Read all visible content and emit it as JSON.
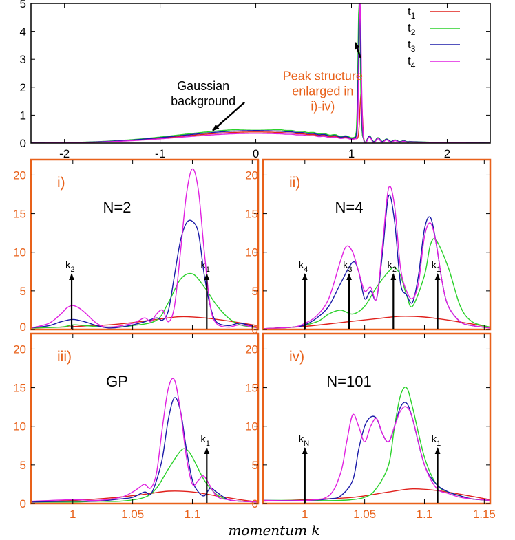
{
  "colors": {
    "t1": "#e0201b",
    "t2": "#2ad12a",
    "t3": "#1a1aa8",
    "t4": "#e020e0",
    "accent": "#e8611a",
    "axis": "#000000"
  },
  "xlabel": "momentum k",
  "chart_data": [
    {
      "type": "line",
      "panel": "top",
      "xlim": [
        -2.35,
        2.45
      ],
      "ylim": [
        0,
        5
      ],
      "xticks": [
        "-2",
        "-1",
        "0",
        "1",
        "2"
      ],
      "xtick_values": [
        -2,
        -1,
        0,
        1,
        2
      ],
      "yticks": [
        "0",
        "1",
        "2",
        "3",
        "4",
        "5"
      ],
      "ytick_values": [
        0,
        1,
        2,
        3,
        4,
        5
      ],
      "legend": {
        "placement": "top-right",
        "entries": [
          {
            "key": "t1",
            "main": "t",
            "sub": "1"
          },
          {
            "key": "t2",
            "main": "t",
            "sub": "2"
          },
          {
            "key": "t3",
            "main": "t",
            "sub": "3"
          },
          {
            "key": "t4",
            "main": "t",
            "sub": "4"
          }
        ]
      },
      "annotations": [
        {
          "lines": [
            "Gaussian",
            "background"
          ],
          "x": -0.55,
          "y": 1.9,
          "arrow_to": [
            -0.45,
            0.45
          ],
          "color": "black"
        },
        {
          "lines": [
            "Peak structure",
            "enlarged in",
            "i)-iv)"
          ],
          "x": 0.7,
          "y": 2.25,
          "arrow_to": [
            1.04,
            3.6
          ],
          "color": "accent"
        }
      ],
      "series": [
        {
          "key": "t1",
          "amp": 0.4,
          "peak": 1.65,
          "center": 1.1
        },
        {
          "key": "t2",
          "amp": 0.5,
          "peak": 5.0,
          "center": 1.08
        },
        {
          "key": "t3",
          "amp": 0.45,
          "peak": 5.0,
          "center": 1.085
        },
        {
          "key": "t4",
          "amp": 0.35,
          "peak": 5.0,
          "center": 1.09
        }
      ]
    },
    {
      "type": "line",
      "panel": "i",
      "label": "i)",
      "title": "N=2",
      "xlim": [
        0.965,
        1.155
      ],
      "ylim": [
        0,
        22
      ],
      "yticks": [
        "0",
        "5",
        "10",
        "15",
        "20"
      ],
      "ytick_values": [
        0,
        5,
        10,
        15,
        20
      ],
      "markers": [
        {
          "x": 0.999,
          "main": "k",
          "sub": "2"
        },
        {
          "x": 1.112,
          "main": "k",
          "sub": "1"
        }
      ],
      "series": [
        {
          "key": "t1",
          "x": [
            0.965,
            0.99,
            1.01,
            1.03,
            1.05,
            1.07,
            1.09,
            1.11,
            1.13,
            1.155
          ],
          "y": [
            0.2,
            0.3,
            0.45,
            0.6,
            0.9,
            1.3,
            1.65,
            1.5,
            1.1,
            0.5
          ]
        },
        {
          "key": "t2",
          "x": [
            0.965,
            0.99,
            1.0,
            1.01,
            1.03,
            1.05,
            1.07,
            1.08,
            1.09,
            1.1,
            1.11,
            1.12,
            1.13,
            1.14,
            1.155
          ],
          "y": [
            0.2,
            0.3,
            0.6,
            0.5,
            0.3,
            0.5,
            1.2,
            3.5,
            6.5,
            7.2,
            5.5,
            3.2,
            1.5,
            0.6,
            0.2
          ]
        },
        {
          "key": "t3",
          "x": [
            0.965,
            0.98,
            0.99,
            1.0,
            1.01,
            1.02,
            1.03,
            1.04,
            1.05,
            1.06,
            1.07,
            1.075,
            1.08,
            1.085,
            1.09,
            1.095,
            1.1,
            1.105,
            1.11,
            1.115,
            1.12,
            1.13,
            1.14,
            1.155
          ],
          "y": [
            0.2,
            0.5,
            1.0,
            1.3,
            1.0,
            0.5,
            0.2,
            0.3,
            0.6,
            1.0,
            1.5,
            1.2,
            2.5,
            7.0,
            11.5,
            13.8,
            14.0,
            12.5,
            7.0,
            3.0,
            1.0,
            0.5,
            0.8,
            0.2
          ]
        },
        {
          "key": "t4",
          "x": [
            0.965,
            0.98,
            0.99,
            0.995,
            1.0,
            1.005,
            1.01,
            1.02,
            1.03,
            1.05,
            1.06,
            1.065,
            1.07,
            1.075,
            1.08,
            1.085,
            1.09,
            1.095,
            1.1,
            1.105,
            1.11,
            1.115,
            1.12,
            1.13,
            1.14,
            1.155
          ],
          "y": [
            0.2,
            0.8,
            2.0,
            2.8,
            3.1,
            2.8,
            2.2,
            0.8,
            0.3,
            0.8,
            1.5,
            1.0,
            2.0,
            2.5,
            1.0,
            3.0,
            10.0,
            17.5,
            20.8,
            18.0,
            10.0,
            3.0,
            0.8,
            0.3,
            0.6,
            0.2
          ]
        }
      ]
    },
    {
      "type": "line",
      "panel": "ii",
      "label": "ii)",
      "title": "N=4",
      "xlim": [
        0.965,
        1.155
      ],
      "ylim": [
        0,
        22
      ],
      "yticks": [
        "0",
        "5",
        "10",
        "15",
        "20"
      ],
      "ytick_values": [
        0,
        5,
        10,
        15,
        20
      ],
      "markers": [
        {
          "x": 1.0,
          "main": "k",
          "sub": "4"
        },
        {
          "x": 1.037,
          "main": "k",
          "sub": "3"
        },
        {
          "x": 1.074,
          "main": "k",
          "sub": "2"
        },
        {
          "x": 1.111,
          "main": "k",
          "sub": "1"
        }
      ],
      "series": [
        {
          "key": "t1",
          "x": [
            0.965,
            1.0,
            1.03,
            1.06,
            1.08,
            1.1,
            1.12,
            1.14,
            1.155
          ],
          "y": [
            0.1,
            0.4,
            0.9,
            1.4,
            1.7,
            1.6,
            1.2,
            0.7,
            0.3
          ]
        },
        {
          "key": "t2",
          "x": [
            0.965,
            0.99,
            1.01,
            1.02,
            1.03,
            1.04,
            1.05,
            1.06,
            1.07,
            1.075,
            1.08,
            1.085,
            1.09,
            1.1,
            1.105,
            1.11,
            1.12,
            1.13,
            1.14,
            1.155
          ],
          "y": [
            0.1,
            0.3,
            1.0,
            2.0,
            2.5,
            2.0,
            3.0,
            5.5,
            7.5,
            8.0,
            7.0,
            4.5,
            3.0,
            7.0,
            11.0,
            11.5,
            8.0,
            3.0,
            1.0,
            0.3
          ]
        },
        {
          "key": "t3",
          "x": [
            0.965,
            0.99,
            1.0,
            1.01,
            1.02,
            1.03,
            1.04,
            1.045,
            1.05,
            1.055,
            1.06,
            1.065,
            1.07,
            1.075,
            1.08,
            1.085,
            1.09,
            1.095,
            1.1,
            1.105,
            1.11,
            1.115,
            1.12,
            1.13,
            1.14,
            1.155
          ],
          "y": [
            0.1,
            0.3,
            0.6,
            1.5,
            3.0,
            6.0,
            8.7,
            7.5,
            4.0,
            5.0,
            4.0,
            10.0,
            17.3,
            14.0,
            6.0,
            4.5,
            3.5,
            7.0,
            13.0,
            14.5,
            11.0,
            6.0,
            3.0,
            1.0,
            0.5,
            0.2
          ]
        },
        {
          "key": "t4",
          "x": [
            0.965,
            0.99,
            1.0,
            1.01,
            1.02,
            1.03,
            1.035,
            1.04,
            1.045,
            1.05,
            1.055,
            1.06,
            1.065,
            1.07,
            1.075,
            1.08,
            1.085,
            1.09,
            1.095,
            1.1,
            1.105,
            1.11,
            1.115,
            1.12,
            1.13,
            1.14,
            1.155
          ],
          "y": [
            0.1,
            0.3,
            0.8,
            1.8,
            4.0,
            9.0,
            10.8,
            10.0,
            7.5,
            5.0,
            5.5,
            4.0,
            11.0,
            18.3,
            16.0,
            8.0,
            5.0,
            4.0,
            6.0,
            12.0,
            13.8,
            11.0,
            6.0,
            3.0,
            1.0,
            0.5,
            0.2
          ]
        }
      ]
    },
    {
      "type": "line",
      "panel": "iii",
      "label": "iii)",
      "title": "GP",
      "xlim": [
        0.965,
        1.155
      ],
      "ylim": [
        0,
        22
      ],
      "xticks": [
        "1",
        "1.05",
        "1.1"
      ],
      "xtick_values": [
        1.0,
        1.05,
        1.1
      ],
      "yticks": [
        "0",
        "5",
        "10",
        "15",
        "20"
      ],
      "ytick_values": [
        0,
        5,
        10,
        15,
        20
      ],
      "markers": [
        {
          "x": 1.112,
          "main": "k",
          "sub": "1"
        }
      ],
      "series": [
        {
          "key": "t1",
          "x": [
            0.965,
            1.0,
            1.03,
            1.06,
            1.08,
            1.1,
            1.12,
            1.14,
            1.155
          ],
          "y": [
            0.2,
            0.4,
            0.7,
            1.2,
            1.6,
            1.5,
            1.0,
            0.5,
            0.2
          ]
        },
        {
          "key": "t2",
          "x": [
            0.965,
            1.0,
            1.02,
            1.04,
            1.06,
            1.07,
            1.08,
            1.09,
            1.095,
            1.1,
            1.11,
            1.12,
            1.13,
            1.14,
            1.155
          ],
          "y": [
            0.2,
            0.2,
            0.3,
            0.3,
            0.8,
            2.0,
            4.5,
            6.8,
            7.0,
            6.0,
            3.0,
            1.2,
            0.5,
            0.3,
            0.2
          ]
        },
        {
          "key": "t3",
          "x": [
            0.965,
            1.0,
            1.02,
            1.04,
            1.05,
            1.06,
            1.065,
            1.07,
            1.075,
            1.08,
            1.085,
            1.09,
            1.095,
            1.1,
            1.105,
            1.11,
            1.115,
            1.12,
            1.13,
            1.14,
            1.155
          ],
          "y": [
            0.2,
            0.3,
            0.3,
            0.6,
            0.8,
            1.5,
            1.2,
            3.0,
            6.0,
            11.0,
            13.7,
            12.0,
            7.0,
            3.0,
            1.5,
            1.0,
            2.0,
            1.5,
            0.5,
            0.3,
            0.2
          ]
        },
        {
          "key": "t4",
          "x": [
            0.965,
            1.0,
            1.02,
            1.04,
            1.05,
            1.055,
            1.06,
            1.065,
            1.07,
            1.075,
            1.08,
            1.085,
            1.09,
            1.095,
            1.1,
            1.105,
            1.11,
            1.12,
            1.13,
            1.14,
            1.155
          ],
          "y": [
            0.3,
            0.5,
            0.4,
            0.8,
            1.5,
            2.0,
            2.5,
            2.0,
            4.0,
            10.0,
            15.0,
            16.0,
            12.0,
            6.0,
            2.5,
            3.0,
            3.5,
            1.0,
            0.5,
            0.3,
            0.2
          ]
        }
      ]
    },
    {
      "type": "line",
      "panel": "iv",
      "label": "iv)",
      "title": "N=101",
      "xlim": [
        0.965,
        1.155
      ],
      "ylim": [
        0,
        22
      ],
      "xticks": [
        "1",
        "1.05",
        "1.1",
        "1.15"
      ],
      "xtick_values": [
        1.0,
        1.05,
        1.1,
        1.15
      ],
      "yticks": [
        "0",
        "5",
        "10",
        "15",
        "20"
      ],
      "ytick_values": [
        0,
        5,
        10,
        15,
        20
      ],
      "markers": [
        {
          "x": 1.0,
          "main": "k",
          "sub": "N"
        },
        {
          "x": 1.111,
          "main": "k",
          "sub": "1"
        }
      ],
      "series": [
        {
          "key": "t1",
          "x": [
            0.965,
            1.0,
            1.04,
            1.07,
            1.09,
            1.11,
            1.13,
            1.155
          ],
          "y": [
            0.3,
            0.5,
            0.8,
            1.5,
            1.9,
            1.7,
            1.2,
            0.5
          ]
        },
        {
          "key": "t2",
          "x": [
            0.965,
            1.0,
            1.03,
            1.05,
            1.06,
            1.07,
            1.075,
            1.08,
            1.085,
            1.09,
            1.1,
            1.11,
            1.12,
            1.13,
            1.14,
            1.155
          ],
          "y": [
            0.4,
            0.4,
            0.4,
            0.8,
            2.0,
            5.0,
            10.0,
            14.0,
            15.0,
            12.5,
            6.0,
            2.5,
            1.5,
            1.0,
            0.6,
            0.4
          ]
        },
        {
          "key": "t3",
          "x": [
            0.965,
            1.0,
            1.02,
            1.03,
            1.04,
            1.045,
            1.05,
            1.055,
            1.06,
            1.065,
            1.07,
            1.075,
            1.08,
            1.085,
            1.09,
            1.1,
            1.11,
            1.12,
            1.13,
            1.14,
            1.155
          ],
          "y": [
            0.4,
            0.4,
            0.6,
            1.0,
            3.0,
            7.0,
            10.0,
            11.2,
            11.0,
            9.0,
            8.0,
            10.0,
            12.5,
            13.0,
            11.0,
            5.0,
            2.5,
            1.5,
            1.0,
            0.6,
            0.4
          ]
        },
        {
          "key": "t4",
          "x": [
            0.965,
            1.0,
            1.02,
            1.03,
            1.035,
            1.04,
            1.045,
            1.05,
            1.055,
            1.06,
            1.065,
            1.07,
            1.075,
            1.08,
            1.085,
            1.09,
            1.1,
            1.11,
            1.12,
            1.13,
            1.14,
            1.155
          ],
          "y": [
            0.4,
            0.4,
            1.0,
            4.0,
            8.0,
            11.5,
            10.0,
            8.0,
            10.0,
            11.0,
            9.0,
            8.0,
            10.0,
            12.0,
            12.5,
            11.0,
            5.0,
            2.0,
            1.3,
            0.8,
            0.6,
            0.4
          ]
        }
      ]
    }
  ]
}
